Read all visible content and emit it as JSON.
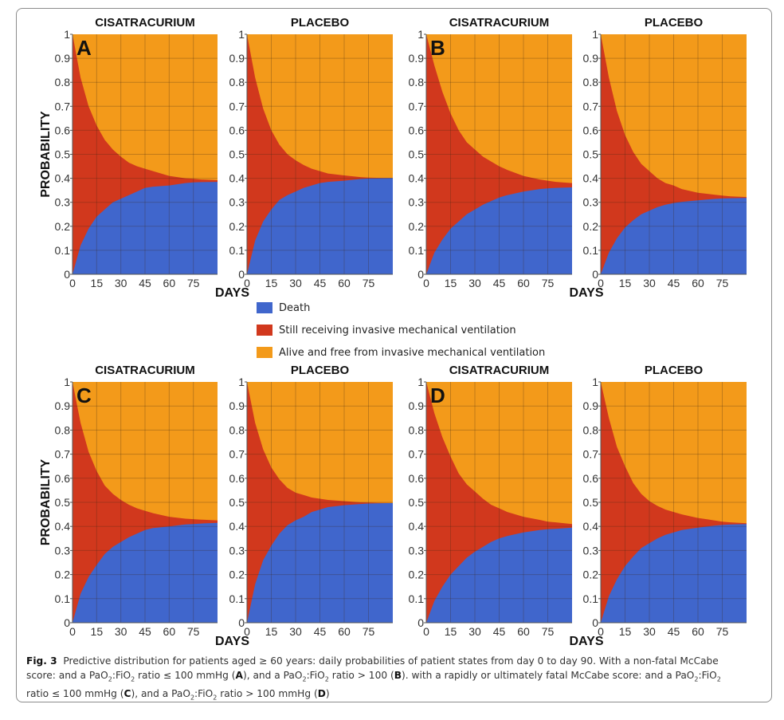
{
  "chart_data": {
    "type": "area",
    "title": "",
    "xlabel": "DAYS",
    "ylabel": "PROBABILITY",
    "xlim": [
      0,
      90
    ],
    "ylim": [
      0,
      1
    ],
    "x_ticks": [
      "0",
      "15",
      "30",
      "45",
      "60",
      "75"
    ],
    "x_tick_values": [
      0,
      15,
      30,
      45,
      60,
      75
    ],
    "y_ticks": [
      "0",
      "0.1",
      "0.2",
      "0.3",
      "0.4",
      "0.5",
      "0.6",
      "0.7",
      "0.8",
      "0.9",
      "1"
    ],
    "y_tick_values": [
      0,
      0.1,
      0.2,
      0.3,
      0.4,
      0.5,
      0.6,
      0.7,
      0.8,
      0.9,
      1
    ],
    "grid": true,
    "stacking": "cumulative: Death at bottom, Still receiving IMV stacked above, Alive and free on top up to 1",
    "legend": {
      "placement": "center",
      "entries": [
        {
          "label": "Death",
          "color": "#4066cc"
        },
        {
          "label": "Still receiving invasive mechanical ventilation",
          "color": "#d1381d"
        },
        {
          "label": "Alive and free from invasive mechanical ventilation",
          "color": "#f39a1a"
        }
      ]
    },
    "x": [
      0,
      5,
      10,
      15,
      20,
      25,
      30,
      35,
      40,
      45,
      50,
      60,
      70,
      75,
      80,
      90
    ],
    "panels": [
      {
        "group": "A",
        "arm": "CISATRACURIUM",
        "show_letter": true,
        "death": [
          0,
          0.12,
          0.19,
          0.24,
          0.27,
          0.3,
          0.315,
          0.33,
          0.345,
          0.36,
          0.365,
          0.37,
          0.38,
          0.383,
          0.384,
          0.385
        ],
        "death_plus_ventilation": [
          1,
          0.82,
          0.7,
          0.62,
          0.56,
          0.52,
          0.49,
          0.465,
          0.45,
          0.44,
          0.43,
          0.41,
          0.4,
          0.398,
          0.395,
          0.392
        ]
      },
      {
        "group": "A",
        "arm": "PLACEBO",
        "show_letter": false,
        "death": [
          0,
          0.14,
          0.22,
          0.27,
          0.31,
          0.33,
          0.345,
          0.36,
          0.37,
          0.38,
          0.385,
          0.39,
          0.397,
          0.399,
          0.4,
          0.401
        ],
        "death_plus_ventilation": [
          1,
          0.82,
          0.69,
          0.6,
          0.54,
          0.5,
          0.475,
          0.455,
          0.44,
          0.43,
          0.42,
          0.412,
          0.405,
          0.403,
          0.402,
          0.401
        ]
      },
      {
        "group": "B",
        "arm": "CISATRACURIUM",
        "show_letter": true,
        "death": [
          0,
          0.09,
          0.145,
          0.19,
          0.22,
          0.25,
          0.27,
          0.29,
          0.305,
          0.32,
          0.33,
          0.345,
          0.355,
          0.358,
          0.36,
          0.362
        ],
        "death_plus_ventilation": [
          1,
          0.87,
          0.76,
          0.67,
          0.6,
          0.55,
          0.52,
          0.49,
          0.47,
          0.45,
          0.435,
          0.41,
          0.395,
          0.39,
          0.385,
          0.38
        ]
      },
      {
        "group": "B",
        "arm": "PLACEBO",
        "show_letter": false,
        "death": [
          0,
          0.09,
          0.15,
          0.195,
          0.225,
          0.25,
          0.265,
          0.28,
          0.29,
          0.297,
          0.302,
          0.308,
          0.314,
          0.316,
          0.317,
          0.318
        ],
        "death_plus_ventilation": [
          1,
          0.82,
          0.68,
          0.58,
          0.51,
          0.46,
          0.43,
          0.4,
          0.38,
          0.37,
          0.355,
          0.34,
          0.332,
          0.328,
          0.325,
          0.322
        ]
      },
      {
        "group": "C",
        "arm": "CISATRACURIUM",
        "show_letter": true,
        "death": [
          0,
          0.12,
          0.19,
          0.24,
          0.285,
          0.315,
          0.335,
          0.355,
          0.37,
          0.385,
          0.393,
          0.4,
          0.408,
          0.41,
          0.412,
          0.415
        ],
        "death_plus_ventilation": [
          1,
          0.83,
          0.71,
          0.63,
          0.57,
          0.535,
          0.51,
          0.49,
          0.475,
          0.465,
          0.455,
          0.44,
          0.432,
          0.43,
          0.428,
          0.425
        ]
      },
      {
        "group": "C",
        "arm": "PLACEBO",
        "show_letter": false,
        "death": [
          0,
          0.16,
          0.26,
          0.32,
          0.37,
          0.405,
          0.425,
          0.44,
          0.46,
          0.47,
          0.48,
          0.488,
          0.493,
          0.495,
          0.496,
          0.497
        ],
        "death_plus_ventilation": [
          1,
          0.83,
          0.72,
          0.645,
          0.595,
          0.56,
          0.54,
          0.53,
          0.52,
          0.515,
          0.51,
          0.505,
          0.5,
          0.499,
          0.498,
          0.497
        ]
      },
      {
        "group": "D",
        "arm": "CISATRACURIUM",
        "show_letter": true,
        "death": [
          0,
          0.09,
          0.15,
          0.2,
          0.235,
          0.27,
          0.295,
          0.315,
          0.335,
          0.35,
          0.36,
          0.375,
          0.385,
          0.388,
          0.39,
          0.395
        ],
        "death_plus_ventilation": [
          1,
          0.87,
          0.77,
          0.69,
          0.62,
          0.575,
          0.545,
          0.515,
          0.49,
          0.475,
          0.46,
          0.44,
          0.427,
          0.42,
          0.417,
          0.41
        ]
      },
      {
        "group": "D",
        "arm": "PLACEBO",
        "show_letter": false,
        "death": [
          0,
          0.11,
          0.18,
          0.235,
          0.275,
          0.31,
          0.33,
          0.35,
          0.365,
          0.375,
          0.385,
          0.395,
          0.403,
          0.406,
          0.408,
          0.41
        ],
        "death_plus_ventilation": [
          1,
          0.85,
          0.73,
          0.65,
          0.58,
          0.535,
          0.505,
          0.485,
          0.47,
          0.46,
          0.45,
          0.435,
          0.425,
          0.42,
          0.417,
          0.413
        ]
      }
    ]
  },
  "legend": {
    "items": [
      {
        "label": "Death",
        "color": "#4066cc"
      },
      {
        "label": "Still receiving invasive mechanical ventilation",
        "color": "#d1381d"
      },
      {
        "label": "Alive and free from invasive mechanical ventilation",
        "color": "#f39a1a"
      }
    ]
  },
  "caption": {
    "fig_label": "Fig. 3",
    "line1": "Predictive distribution for patients aged ≥ 60 years: daily probabilities of patient states from day 0 to day 90. With a non-fatal McCabe",
    "line2_a": "score: and a PaO",
    "line2_b": ":FiO",
    "line2_c": " ratio ≤ 100 mmHg (",
    "letter_a": "A",
    "line2_d": "), and a PaO",
    "line2_e": ":FiO",
    "line2_f": " ratio > 100 (",
    "letter_b": "B",
    "line2_g": "). with a rapidly or ultimately fatal McCabe score: and a PaO",
    "line2_h": ":FiO",
    "line3_a": "ratio ≤ 100 mmHg (",
    "letter_c": "C",
    "line3_b": "), and a PaO",
    "line3_c": ":FiO",
    "line3_d": " ratio > 100 mmHg (",
    "letter_d": "D",
    "line3_e": ")",
    "sub2": "2"
  }
}
